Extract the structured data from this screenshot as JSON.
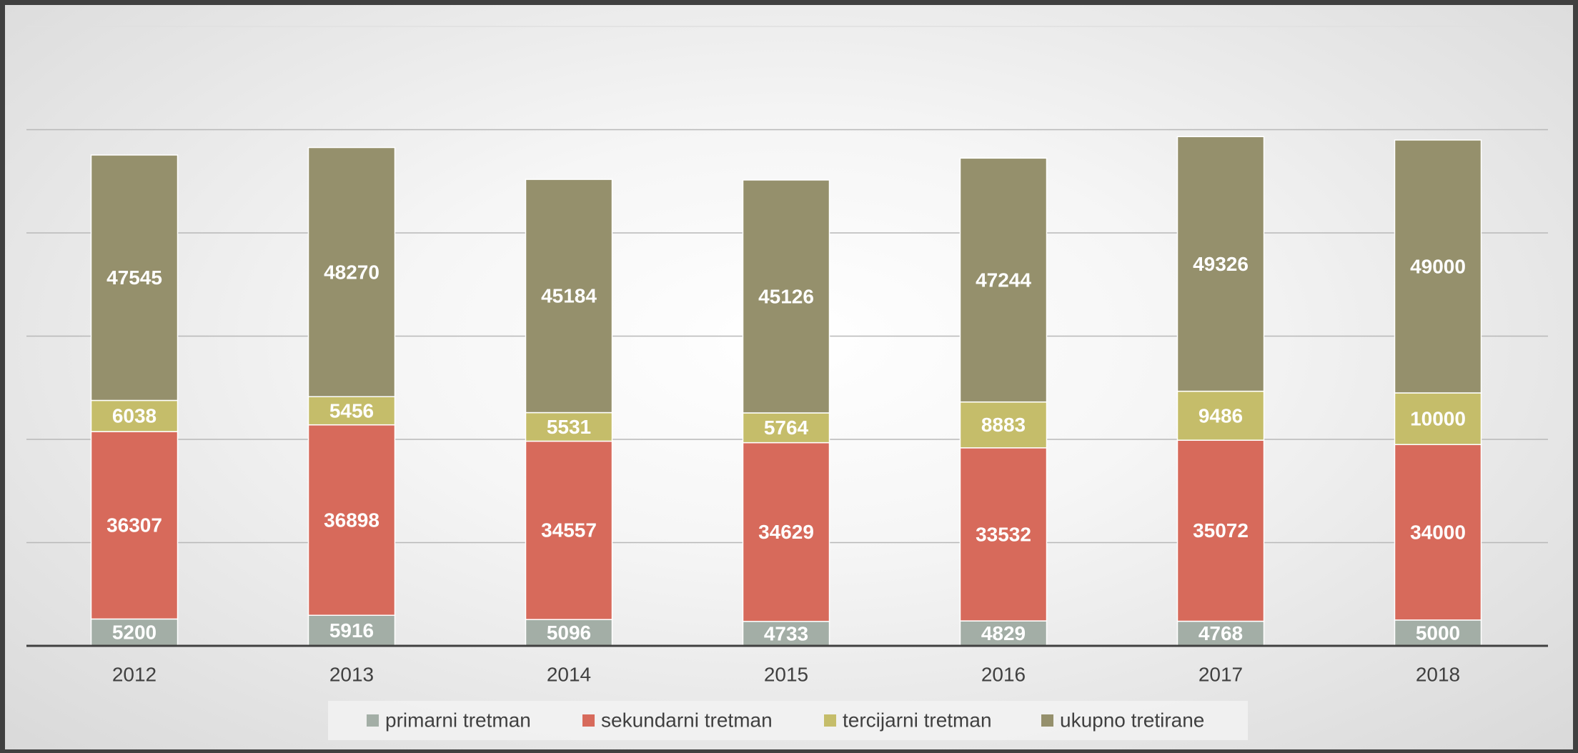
{
  "chart_data": {
    "type": "stacked_bar",
    "categories": [
      "2012",
      "2013",
      "2014",
      "2015",
      "2016",
      "2017",
      "2018"
    ],
    "series": [
      {
        "name": "primarni tretman",
        "color": "#a3aea6",
        "values": [
          5200,
          5916,
          5096,
          4733,
          4829,
          4768,
          5000
        ]
      },
      {
        "name": "sekundarni tretman",
        "color": "#d76a5b",
        "values": [
          36307,
          36898,
          34557,
          34629,
          33532,
          35072,
          34000
        ]
      },
      {
        "name": "tercijarni tretman",
        "color": "#c5bd6a",
        "values": [
          6038,
          5456,
          5531,
          5764,
          8883,
          9486,
          10000
        ]
      },
      {
        "name": "ukupno tretirane",
        "color": "#95906c",
        "values": [
          47545,
          48270,
          45184,
          45126,
          47244,
          49326,
          49000
        ]
      }
    ],
    "ylim": [
      0,
      120000
    ],
    "yticks": [
      0,
      20000,
      40000,
      60000,
      80000,
      100000,
      120000
    ],
    "grid": true,
    "legend": "bottom"
  }
}
